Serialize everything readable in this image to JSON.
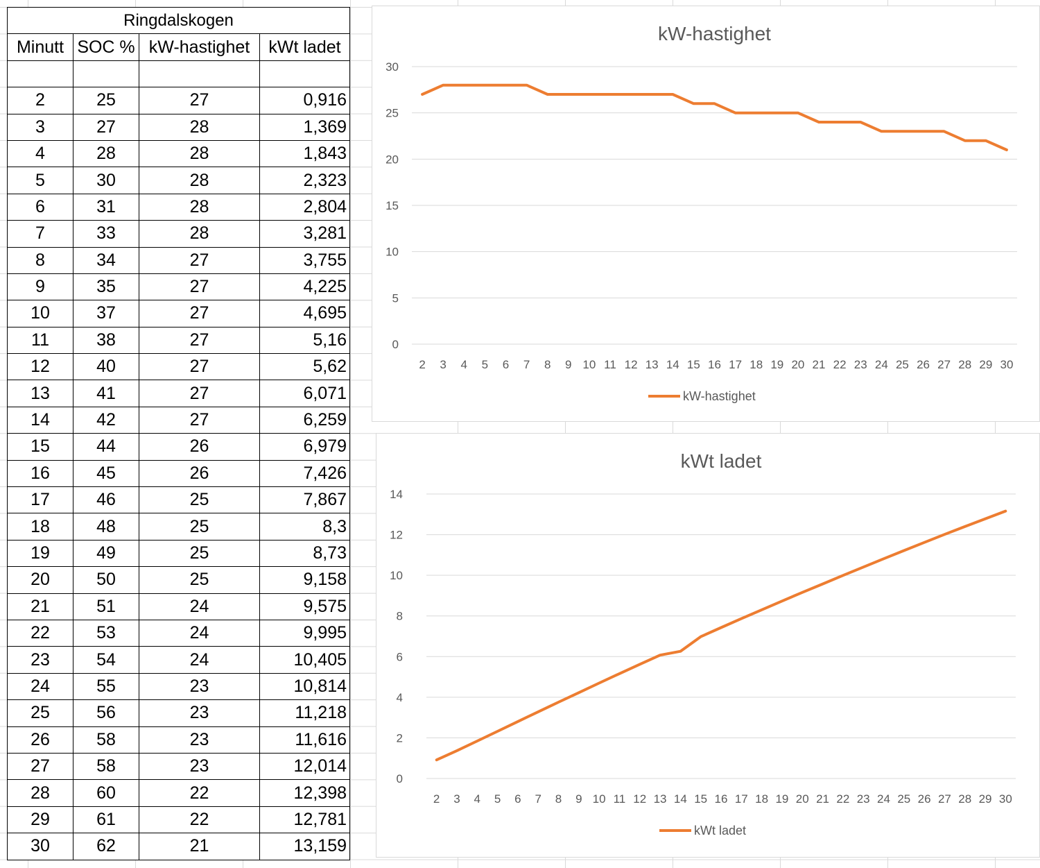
{
  "table": {
    "title": "Ringdalskogen",
    "headers": [
      "Minutt",
      "SOC %",
      "kW-hastighet",
      "kWt ladet"
    ],
    "rows": [
      [
        "2",
        "25",
        "27",
        "0,916"
      ],
      [
        "3",
        "27",
        "28",
        "1,369"
      ],
      [
        "4",
        "28",
        "28",
        "1,843"
      ],
      [
        "5",
        "30",
        "28",
        "2,323"
      ],
      [
        "6",
        "31",
        "28",
        "2,804"
      ],
      [
        "7",
        "33",
        "28",
        "3,281"
      ],
      [
        "8",
        "34",
        "27",
        "3,755"
      ],
      [
        "9",
        "35",
        "27",
        "4,225"
      ],
      [
        "10",
        "37",
        "27",
        "4,695"
      ],
      [
        "11",
        "38",
        "27",
        "5,16"
      ],
      [
        "12",
        "40",
        "27",
        "5,62"
      ],
      [
        "13",
        "41",
        "27",
        "6,071"
      ],
      [
        "14",
        "42",
        "27",
        "6,259"
      ],
      [
        "15",
        "44",
        "26",
        "6,979"
      ],
      [
        "16",
        "45",
        "26",
        "7,426"
      ],
      [
        "17",
        "46",
        "25",
        "7,867"
      ],
      [
        "18",
        "48",
        "25",
        "8,3"
      ],
      [
        "19",
        "49",
        "25",
        "8,73"
      ],
      [
        "20",
        "50",
        "25",
        "9,158"
      ],
      [
        "21",
        "51",
        "24",
        "9,575"
      ],
      [
        "22",
        "53",
        "24",
        "9,995"
      ],
      [
        "23",
        "54",
        "24",
        "10,405"
      ],
      [
        "24",
        "55",
        "23",
        "10,814"
      ],
      [
        "25",
        "56",
        "23",
        "11,218"
      ],
      [
        "26",
        "58",
        "23",
        "11,616"
      ],
      [
        "27",
        "58",
        "23",
        "12,014"
      ],
      [
        "28",
        "60",
        "22",
        "12,398"
      ],
      [
        "29",
        "61",
        "22",
        "12,781"
      ],
      [
        "30",
        "62",
        "21",
        "13,159"
      ]
    ]
  },
  "chart_data": [
    {
      "type": "line",
      "title": "kW-hastighet",
      "x": [
        2,
        3,
        4,
        5,
        6,
        7,
        8,
        9,
        10,
        11,
        12,
        13,
        14,
        15,
        16,
        17,
        18,
        19,
        20,
        21,
        22,
        23,
        24,
        25,
        26,
        27,
        28,
        29,
        30
      ],
      "series": [
        {
          "name": "kW-hastighet",
          "color": "#ED7D31",
          "values": [
            27,
            28,
            28,
            28,
            28,
            28,
            27,
            27,
            27,
            27,
            27,
            27,
            27,
            26,
            26,
            25,
            25,
            25,
            25,
            24,
            24,
            24,
            23,
            23,
            23,
            23,
            22,
            22,
            21
          ]
        }
      ],
      "ylim": [
        0,
        30
      ],
      "yticks": [
        0,
        5,
        10,
        15,
        20,
        25,
        30
      ],
      "grid": true,
      "legend": "bottom"
    },
    {
      "type": "line",
      "title": "kWt ladet",
      "x": [
        2,
        3,
        4,
        5,
        6,
        7,
        8,
        9,
        10,
        11,
        12,
        13,
        14,
        15,
        16,
        17,
        18,
        19,
        20,
        21,
        22,
        23,
        24,
        25,
        26,
        27,
        28,
        29,
        30
      ],
      "series": [
        {
          "name": "kWt ladet",
          "color": "#ED7D31",
          "values": [
            0.916,
            1.369,
            1.843,
            2.323,
            2.804,
            3.281,
            3.755,
            4.225,
            4.695,
            5.16,
            5.62,
            6.071,
            6.259,
            6.979,
            7.426,
            7.867,
            8.3,
            8.73,
            9.158,
            9.575,
            9.995,
            10.405,
            10.814,
            11.218,
            11.616,
            12.014,
            12.398,
            12.781,
            13.159
          ]
        }
      ],
      "ylim": [
        0,
        14
      ],
      "yticks": [
        0,
        2,
        4,
        6,
        8,
        10,
        12,
        14
      ],
      "grid": true,
      "legend": "bottom"
    }
  ]
}
